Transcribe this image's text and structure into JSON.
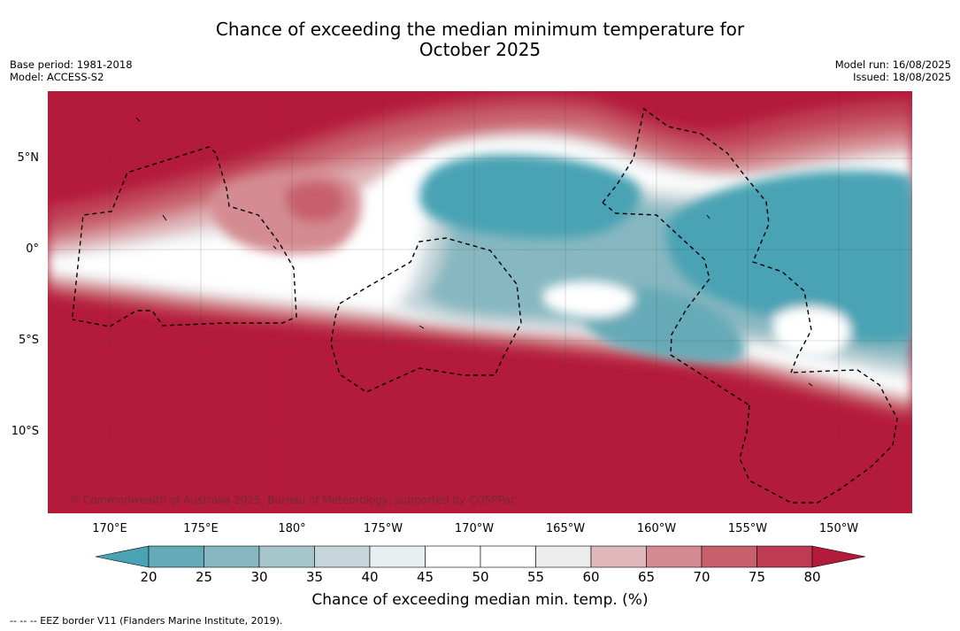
{
  "title": {
    "line1": "Chance of exceeding the median minimum temperature for",
    "line2": "October 2025"
  },
  "meta": {
    "base_period": "Base period: 1981-2018",
    "model": "Model: ACCESS-S2",
    "model_run": "Model run: 16/08/2025",
    "issued": "Issued: 18/08/2025"
  },
  "map": {
    "lon_labels": [
      "170°E",
      "175°E",
      "180°",
      "175°W",
      "170°W",
      "165°W",
      "160°W",
      "155°W",
      "150°W"
    ],
    "lat_labels": [
      "5°N",
      "0°",
      "5°S",
      "10°S"
    ],
    "copyright": "© Commonwealth of Australia 2025, Bureau of Meteorology, supported by COSPPac",
    "colors": {
      "c80": "#b41b3a",
      "c75": "#be3c52",
      "c70": "#c8606c",
      "c65": "#d48b92",
      "c60": "#e0b7bb",
      "c55": "#ececed",
      "c50": "#ffffff",
      "c45": "#ffffff",
      "c40": "#e9eef0",
      "c35": "#c6d6db",
      "c30": "#a6c6cb",
      "c25": "#87b7c1",
      "c20": "#66aab7",
      "c15": "#49a3b4"
    }
  },
  "colorbar": {
    "ticks": [
      "20",
      "25",
      "30",
      "35",
      "40",
      "45",
      "50",
      "55",
      "60",
      "65",
      "70",
      "75",
      "80"
    ],
    "colors": [
      "#66aab7",
      "#87b7c1",
      "#a6c6cb",
      "#c6d6db",
      "#e9eef0",
      "#ffffff",
      "#ffffff",
      "#ececed",
      "#e0b7bb",
      "#d48b92",
      "#c8606c",
      "#be3c52"
    ],
    "low_color": "#49a3b4",
    "high_color": "#b41b3a",
    "label": "Chance of exceeding median min. temp. (%)"
  },
  "footer": "--  --  -- EEZ border V11 (Flanders Marine Institute, 2019)."
}
